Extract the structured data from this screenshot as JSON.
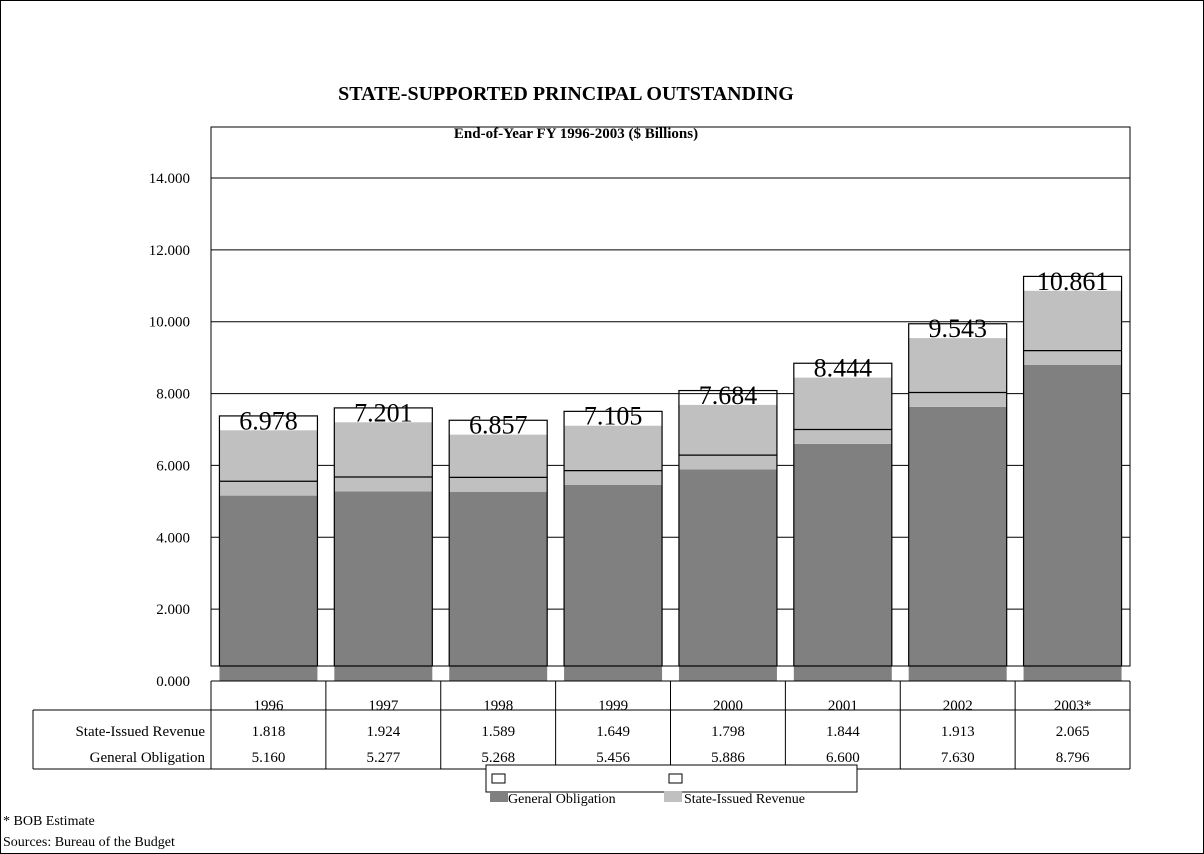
{
  "chart_data": {
    "type": "bar",
    "stacked": true,
    "title": "STATE-SUPPORTED PRINCIPAL OUTSTANDING",
    "subtitle": "End-of-Year FY 1996-2003  ($ Billions)",
    "categories": [
      "1996",
      "1997",
      "1998",
      "1999",
      "2000",
      "2001",
      "2002",
      "2003*"
    ],
    "series": [
      {
        "name": "General Obligation",
        "color": "#808080",
        "values": [
          5.16,
          5.277,
          5.268,
          5.456,
          5.886,
          6.6,
          7.63,
          8.796
        ],
        "labels": [
          "5.160",
          "5.277",
          "5.268",
          "5.456",
          "5.886",
          "6.600",
          "7.630",
          "8.796"
        ]
      },
      {
        "name": "State-Issued Revenue",
        "color": "#c0c0c0",
        "values": [
          1.818,
          1.924,
          1.589,
          1.649,
          1.798,
          1.844,
          1.913,
          2.065
        ],
        "labels": [
          "1.818",
          "1.924",
          "1.589",
          "1.649",
          "1.798",
          "1.844",
          "1.913",
          "2.065"
        ]
      }
    ],
    "totals": [
      "6.978",
      "7.201",
      "6.857",
      "7.105",
      "7.684",
      "8.444",
      "9.543",
      "10.861"
    ],
    "y_ticks": [
      "0.000",
      "2.000",
      "4.000",
      "6.000",
      "8.000",
      "10.000",
      "12.000",
      "14.000"
    ],
    "ylim": [
      0,
      16
    ],
    "grid": true,
    "legend": [
      "General Obligation",
      "State-Issued Revenue"
    ],
    "legend_position": "bottom",
    "table": {
      "rows": [
        {
          "label": "State-Issued Revenue",
          "series": 1
        },
        {
          "label": "General Obligation",
          "series": 0
        }
      ]
    }
  },
  "footnotes": {
    "estimate": "* BOB Estimate",
    "sources": "Sources: Bureau of the Budget"
  }
}
